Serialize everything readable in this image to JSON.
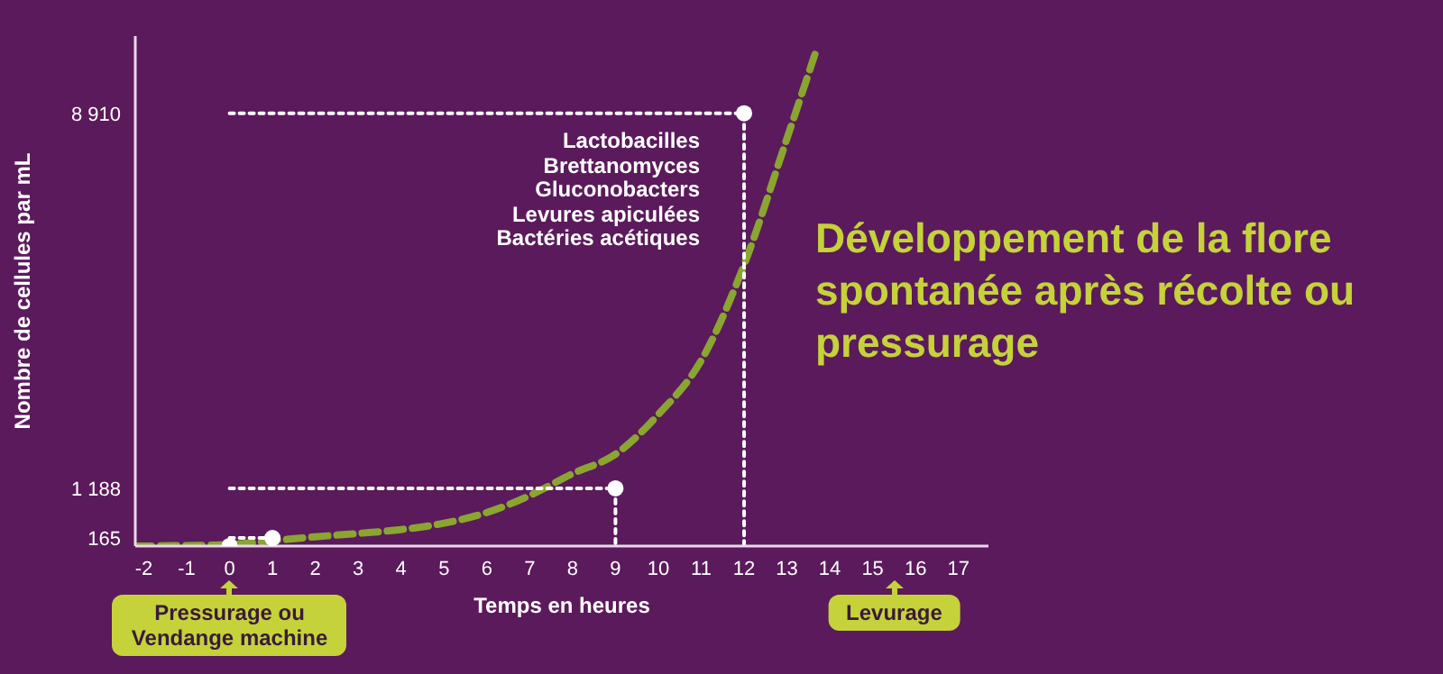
{
  "chart_data": {
    "type": "line",
    "title": "Développement de la flore spontanée après récolte ou pressurage",
    "xlabel": "Temps en heures",
    "ylabel": "Nombre de cellules par mL",
    "xlim": [
      -2.2,
      17.7
    ],
    "xticks": [
      -2,
      -1,
      0,
      1,
      2,
      3,
      4,
      5,
      6,
      7,
      8,
      9,
      10,
      11,
      12,
      13,
      14,
      15,
      16,
      17
    ],
    "ylim": [
      0,
      10500
    ],
    "grid": false,
    "yticks": [
      165,
      {
        "value": 1188,
        "label": "1 188"
      },
      {
        "value": 8910,
        "label": "8 910"
      }
    ],
    "series": [
      {
        "color": "#8aa530",
        "line_style": "dashed",
        "marker": "none",
        "x": [
          -2.2,
          -1,
          0,
          1,
          2,
          3,
          4,
          5,
          6,
          7,
          8,
          9,
          10,
          11,
          12,
          13,
          13.7
        ],
        "values": [
          0,
          10,
          30,
          110,
          190,
          260,
          340,
          470,
          690,
          1040,
          1490,
          1890,
          2710,
          3820,
          5790,
          8390,
          10250
        ]
      },
      {
        "type": "line",
        "color": "#ffffff",
        "line_style": "dotted",
        "marker": "none",
        "x": [
          0,
          12,
          12
        ],
        "values": [
          8910,
          8910,
          0
        ]
      },
      {
        "type": "line",
        "color": "#ffffff",
        "line_style": "dotted",
        "marker": "none",
        "x": [
          0,
          9,
          9
        ],
        "values": [
          1188,
          1188,
          0
        ]
      },
      {
        "type": "line",
        "color": "#ffffff",
        "line_style": "dotted",
        "marker": "none",
        "x": [
          0,
          1
        ],
        "values": [
          165,
          165
        ]
      },
      {
        "type": "scatter",
        "color": "#ffffff",
        "marker": "circle",
        "x": [
          0,
          1,
          9,
          12
        ],
        "values": [
          0,
          165,
          1188,
          8910
        ]
      }
    ],
    "annotations": [
      "Lactobacilles",
      "Brettanomyces",
      "Gluconobacters",
      "Levures apiculées",
      "Bactéries acétiques",
      "Pressurage ou Vendange machine",
      "Levurage"
    ]
  }
}
